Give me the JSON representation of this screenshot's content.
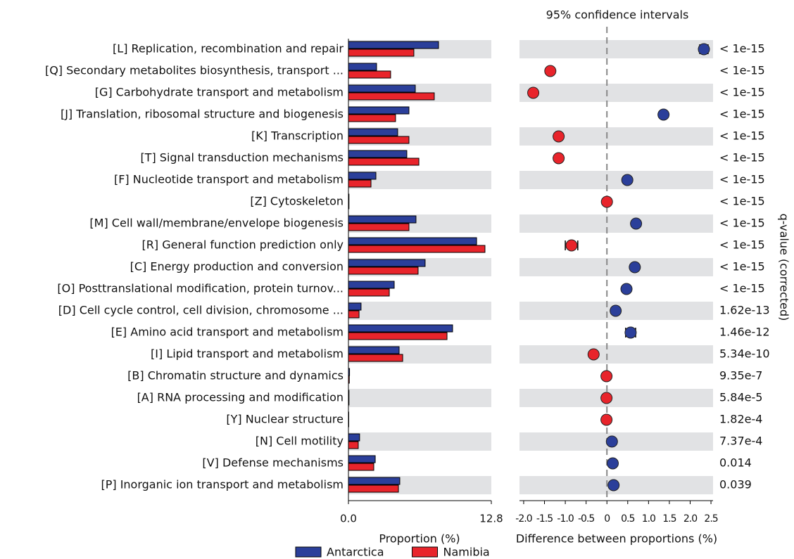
{
  "chart_data": [
    {
      "type": "bar",
      "categories": [
        "[L] Replication, recombination and repair",
        "[Q] Secondary metabolites biosynthesis, transport ...",
        "[G] Carbohydrate transport and metabolism",
        "[J] Translation, ribosomal structure and biogenesis",
        "[K] Transcription",
        "[T] Signal transduction mechanisms",
        "[F] Nucleotide transport and metabolism",
        "[Z] Cytoskeleton",
        "[M] Cell wall/membrane/envelope biogenesis",
        "[R] General function prediction only",
        "[C] Energy production and conversion",
        "[O] Posttranslational modification, protein turnov...",
        "[D] Cell cycle control, cell division, chromosome ...",
        "[E] Amino acid transport and metabolism",
        "[I] Lipid transport and metabolism",
        "[B] Chromatin structure and dynamics",
        "[A] RNA processing and modification",
        "[Y] Nuclear structure",
        "[N] Cell motility",
        "[V] Defense mechanisms",
        "[P] Inorganic ion transport and metabolism"
      ],
      "series": [
        {
          "name": "Antarctica",
          "color": "#2b3f9a",
          "values": [
            8.07,
            2.52,
            5.99,
            5.42,
            4.41,
            5.23,
            2.46,
            0.05,
            6.05,
            11.48,
            6.87,
            4.1,
            1.13,
            9.33,
            4.54,
            0.1,
            0.05,
            0.03,
            1.0,
            2.4,
            4.6
          ]
        },
        {
          "name": "Namibia",
          "color": "#e8242b",
          "values": [
            5.86,
            3.78,
            7.69,
            4.22,
            5.42,
            6.31,
            2.02,
            0.05,
            5.42,
            12.23,
            6.24,
            3.66,
            0.95,
            8.83,
            4.86,
            0.08,
            0.05,
            0.03,
            0.88,
            2.27,
            4.48
          ]
        }
      ],
      "xlim": [
        0,
        12.8
      ],
      "xticks": [
        {
          "value": 0,
          "label": "0.0"
        },
        12.8
      ],
      "xlabel": "Proportion (%)"
    },
    {
      "type": "dot",
      "title": "95% confidence intervals",
      "values": [
        2.33,
        -1.36,
        -1.77,
        1.36,
        -1.16,
        -1.16,
        0.49,
        0,
        0.7,
        -0.85,
        0.67,
        0.47,
        0.21,
        0.57,
        -0.32,
        -0.01,
        -0.01,
        -0.01,
        0.12,
        0.14,
        0.16
      ],
      "errors": [
        0.1,
        0.06,
        0.07,
        0.05,
        0.06,
        0.06,
        0.04,
        0.02,
        0.07,
        0.15,
        0.07,
        0.05,
        0.04,
        0.12,
        0.05,
        0.01,
        0.01,
        0.01,
        0.03,
        0.03,
        0.04
      ],
      "xlim": [
        -2.05,
        2.55
      ],
      "xticks": [
        {
          "value": -2,
          "label": "-2.0"
        },
        -1.5,
        {
          "value": -1,
          "label": "-1.0"
        },
        -0.5,
        0,
        0.5,
        {
          "value": 1,
          "label": "1.0"
        },
        1.5,
        {
          "value": 2,
          "label": "2.0"
        },
        2.5
      ],
      "xlabel": "Difference between proportions (%)",
      "q_values": [
        "< 1e-15",
        "< 1e-15",
        "< 1e-15",
        "< 1e-15",
        "< 1e-15",
        "< 1e-15",
        "< 1e-15",
        "< 1e-15",
        "< 1e-15",
        "< 1e-15",
        "< 1e-15",
        "< 1e-15",
        "1.62e-13",
        "1.46e-12",
        "5.34e-10",
        "9.35e-7",
        "5.84e-5",
        "1.82e-4",
        "7.37e-4",
        "0.014",
        "0.039"
      ],
      "q_label": "q-value (corrected)"
    }
  ]
}
